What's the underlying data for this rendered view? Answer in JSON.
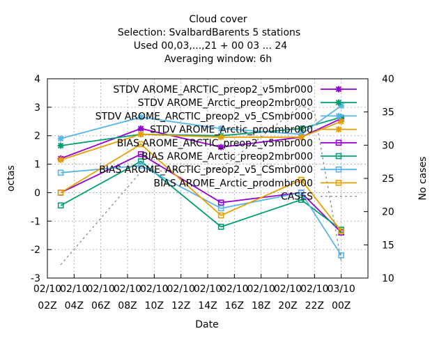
{
  "chart_data": {
    "type": "line",
    "title_lines": [
      "Cloud cover",
      "Selection: SvalbardBarents      5 stations",
      "Used  00,03,...,21  + 00 03 ... 24",
      "Averaging window:  6h"
    ],
    "xlabel": "Date",
    "ylabel": "octas",
    "y2label": "No cases",
    "xlim": [
      2,
      26
    ],
    "ylim": [
      -3,
      4
    ],
    "y2lim": [
      10,
      40
    ],
    "x_ticks": [
      {
        "x": 2,
        "line1": "02/10",
        "line2": "02Z"
      },
      {
        "x": 4,
        "line1": "02/10",
        "line2": "04Z"
      },
      {
        "x": 6,
        "line1": "02/10",
        "line2": "06Z"
      },
      {
        "x": 8,
        "line1": "02/10",
        "line2": "08Z"
      },
      {
        "x": 10,
        "line1": "02/10",
        "line2": "10Z"
      },
      {
        "x": 12,
        "line1": "02/10",
        "line2": "12Z"
      },
      {
        "x": 14,
        "line1": "02/10",
        "line2": "14Z"
      },
      {
        "x": 16,
        "line1": "02/10",
        "line2": "16Z"
      },
      {
        "x": 18,
        "line1": "02/10",
        "line2": "18Z"
      },
      {
        "x": 20,
        "line1": "02/10",
        "line2": "20Z"
      },
      {
        "x": 22,
        "line1": "02/10",
        "line2": "22Z"
      },
      {
        "x": 24,
        "line1": "03/10",
        "line2": "00Z"
      }
    ],
    "y_ticks": [
      -3,
      -2,
      -1,
      0,
      1,
      2,
      3,
      4
    ],
    "y2_ticks": [
      10,
      15,
      20,
      25,
      30,
      35,
      40
    ],
    "grid": true,
    "legend_position": "top-right",
    "x": [
      3,
      9,
      15,
      21,
      24
    ],
    "series": [
      {
        "name": "STDV AROME_ARCTIC_preop2_v5mbr000",
        "color": "#9400d3",
        "marker": "cross",
        "values": [
          1.2,
          2.25,
          1.6,
          1.95,
          2.6
        ]
      },
      {
        "name": "STDV AROME_Arctic_preop2mbr000",
        "color": "#009e73",
        "marker": "cross",
        "values": [
          1.65,
          2.05,
          2.0,
          2.25,
          2.65
        ]
      },
      {
        "name": "STDV AROME_ARCTIC_preop2_v5_CSmbr000",
        "color": "#56b4e9",
        "marker": "cross",
        "values": [
          1.9,
          2.65,
          2.25,
          2.05,
          3.05
        ]
      },
      {
        "name": "STDV AROME_Arctic_prodmbr000",
        "color": "#e69f00",
        "marker": "cross",
        "values": [
          1.15,
          2.05,
          1.95,
          1.95,
          2.5
        ]
      },
      {
        "name": "BIAS AROME_ARCTIC_preop2_v5mbr000",
        "color": "#9400d3",
        "marker": "square",
        "values": [
          0.0,
          1.35,
          -0.35,
          0.0,
          -1.4
        ]
      },
      {
        "name": "BIAS AROME_Arctic_preop2mbr000",
        "color": "#009e73",
        "marker": "square",
        "values": [
          -0.45,
          1.1,
          -1.2,
          -0.25,
          -1.3
        ]
      },
      {
        "name": "BIAS AROME_ARCTIC_preop2_v5_CSmbr000",
        "color": "#56b4e9",
        "marker": "square",
        "values": [
          0.7,
          0.95,
          -0.55,
          0.0,
          -2.2
        ]
      },
      {
        "name": "BIAS AROME_Arctic_prodmbr000",
        "color": "#e69f00",
        "marker": "square",
        "values": [
          0.0,
          1.7,
          -0.8,
          0.45,
          -1.35
        ]
      },
      {
        "name": "CASES",
        "color": "#888888",
        "marker": "none",
        "dashed": true,
        "axis": "y2",
        "x": [
          3,
          9,
          15,
          21,
          22,
          24
        ],
        "values": [
          12,
          26,
          26.5,
          36,
          35,
          12.5
        ]
      }
    ]
  }
}
